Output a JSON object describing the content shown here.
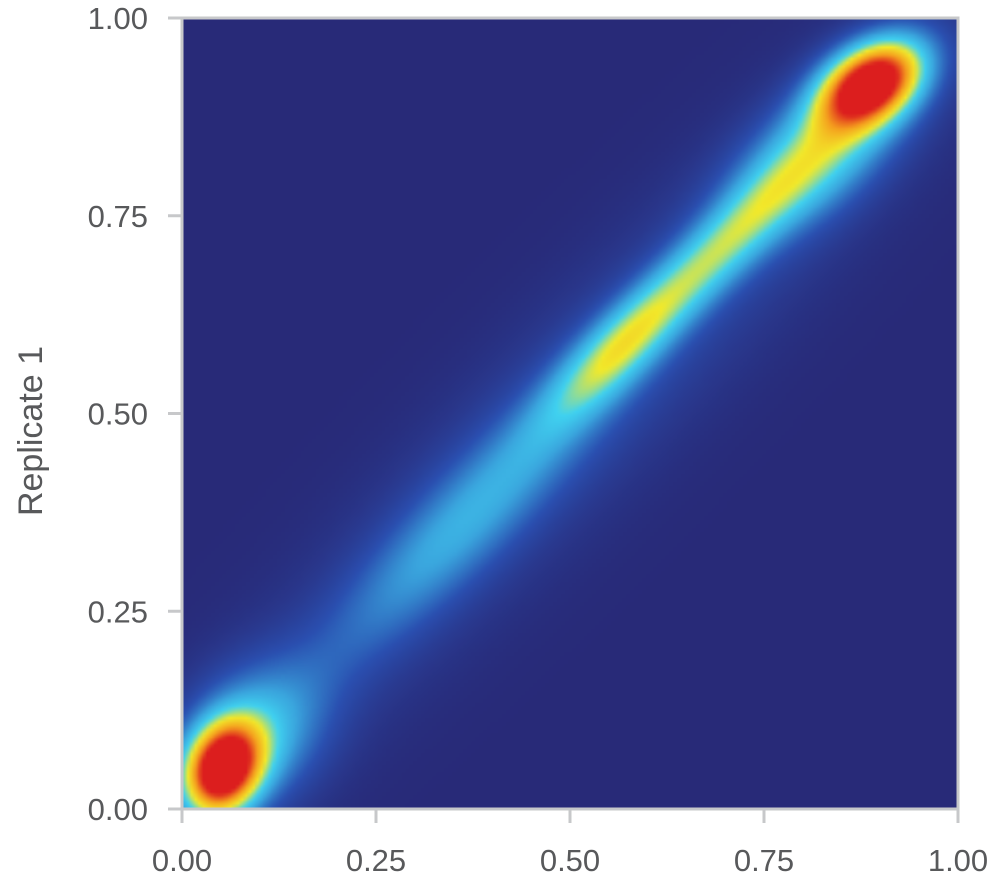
{
  "chart_data": {
    "type": "heatmap",
    "title": "",
    "xlabel": "",
    "ylabel": "Replicate 1",
    "xlim": [
      0,
      1
    ],
    "ylim": [
      0,
      1
    ],
    "grid": false,
    "x_ticks": [
      {
        "value": 0.0,
        "label": "0.00"
      },
      {
        "value": 0.25,
        "label": "0.25"
      },
      {
        "value": 0.5,
        "label": "0.50"
      },
      {
        "value": 0.75,
        "label": "0.75"
      },
      {
        "value": 1.0,
        "label": "1.00"
      }
    ],
    "y_ticks": [
      {
        "value": 0.0,
        "label": "0.00"
      },
      {
        "value": 0.25,
        "label": "0.25"
      },
      {
        "value": 0.5,
        "label": "0.50"
      },
      {
        "value": 0.75,
        "label": "0.75"
      },
      {
        "value": 1.0,
        "label": "1.00"
      }
    ],
    "colormap": [
      "#282a78",
      "#2a4fb0",
      "#3aa6de",
      "#40d2f0",
      "#f2e92a",
      "#f5a01e",
      "#dc1e1e"
    ],
    "density_hotspots": [
      {
        "x": 0.05,
        "y": 0.05,
        "level": "high"
      },
      {
        "x": 0.89,
        "y": 0.92,
        "level": "high"
      },
      {
        "x": 0.55,
        "y": 0.57,
        "level": "medium"
      }
    ]
  }
}
